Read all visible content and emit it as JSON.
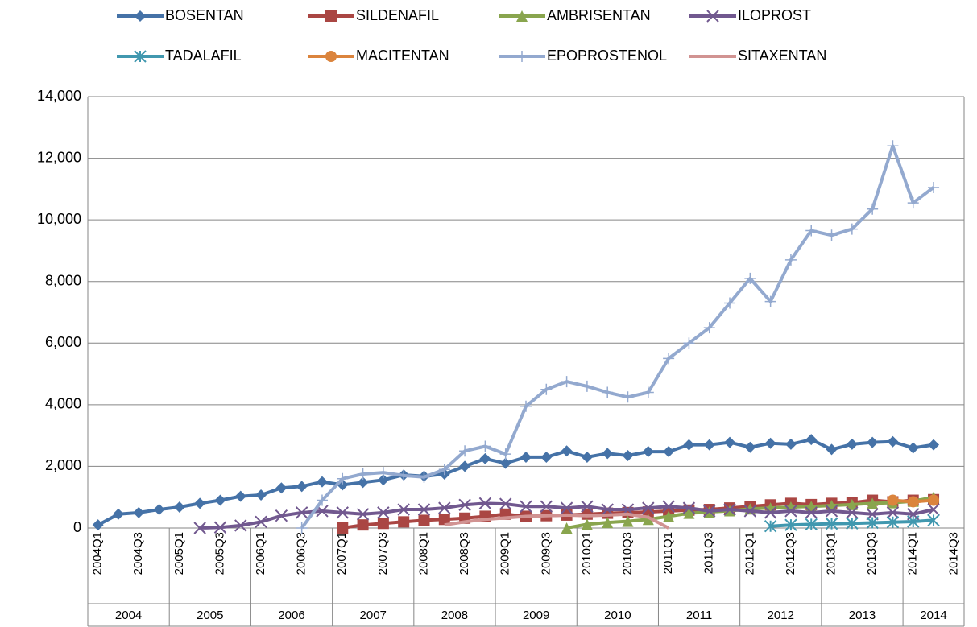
{
  "chart_data": {
    "type": "line",
    "categories": [
      "2004Q1",
      null,
      "2004Q3",
      null,
      "2005Q1",
      null,
      "2005Q3",
      null,
      "2006Q1",
      null,
      "2006Q3",
      null,
      "2007Q1",
      null,
      "2007Q3",
      null,
      "2008Q1",
      null,
      "2008Q3",
      null,
      "2009Q1",
      null,
      "2009Q3",
      null,
      "2010Q1",
      null,
      "2010Q3",
      null,
      "2011Q1",
      null,
      "2011Q3",
      null,
      "2012Q1",
      null,
      "2012Q3",
      null,
      "2013Q1",
      null,
      "2013Q3",
      null,
      "2014Q1",
      null,
      "2014Q3"
    ],
    "groups": [
      "2004",
      "2005",
      "2006",
      "2007",
      "2008",
      "2009",
      "2010",
      "2011",
      "2012",
      "2013",
      "2014"
    ],
    "ylim": [
      0,
      14000
    ],
    "yticks": [
      0,
      {
        "value": 2000,
        "label": "2,000"
      },
      {
        "value": 4000,
        "label": "4,000"
      },
      {
        "value": 6000,
        "label": "6,000"
      },
      {
        "value": 8000,
        "label": "8,000"
      },
      {
        "value": 10000,
        "label": "10,000"
      },
      {
        "value": 12000,
        "label": "12,000"
      },
      {
        "value": 14000,
        "label": "14,000"
      }
    ],
    "grid": true,
    "legend": "top",
    "series": [
      {
        "name": "BOSENTAN",
        "color": "#4572a7",
        "marker": "diamond",
        "values": [
          100,
          450,
          500,
          600,
          680,
          800,
          900,
          1030,
          1070,
          1300,
          1350,
          1500,
          1400,
          1480,
          1560,
          1720,
          1680,
          1750,
          2000,
          2250,
          2100,
          2300,
          2300,
          2500,
          2300,
          2420,
          2350,
          2480,
          2480,
          2700,
          2700,
          2780,
          2620,
          2750,
          2720,
          2870,
          2550,
          2720,
          2780,
          2800,
          2600,
          2700,
          null
        ]
      },
      {
        "name": "SILDENAFIL",
        "color": "#aa4643",
        "marker": "square",
        "values": [
          null,
          null,
          null,
          null,
          null,
          null,
          null,
          null,
          null,
          null,
          null,
          null,
          0,
          100,
          150,
          200,
          250,
          280,
          320,
          380,
          450,
          380,
          400,
          420,
          450,
          480,
          500,
          520,
          550,
          580,
          600,
          650,
          700,
          750,
          800,
          760,
          800,
          820,
          900,
          850,
          900,
          920,
          null
        ]
      },
      {
        "name": "AMBRISENTAN",
        "color": "#89a54e",
        "marker": "triangle",
        "values": [
          null,
          null,
          null,
          null,
          null,
          null,
          null,
          null,
          null,
          null,
          null,
          null,
          null,
          null,
          null,
          null,
          null,
          null,
          null,
          null,
          null,
          null,
          null,
          0,
          120,
          180,
          220,
          280,
          380,
          480,
          520,
          560,
          620,
          650,
          680,
          700,
          730,
          760,
          800,
          820,
          870,
          1000,
          null
        ]
      },
      {
        "name": "ILOPROST",
        "color": "#71588f",
        "marker": "x",
        "values": [
          null,
          null,
          null,
          null,
          null,
          0,
          20,
          80,
          200,
          400,
          500,
          550,
          500,
          450,
          500,
          600,
          600,
          650,
          750,
          800,
          780,
          700,
          700,
          650,
          700,
          600,
          600,
          650,
          700,
          650,
          550,
          600,
          550,
          500,
          550,
          500,
          550,
          500,
          450,
          500,
          450,
          600,
          null
        ]
      },
      {
        "name": "TADALAFIL",
        "color": "#4198af",
        "marker": "star",
        "values": [
          null,
          null,
          null,
          null,
          null,
          null,
          null,
          null,
          null,
          null,
          null,
          null,
          null,
          null,
          null,
          null,
          null,
          null,
          null,
          null,
          null,
          null,
          null,
          null,
          null,
          null,
          null,
          null,
          null,
          null,
          null,
          null,
          null,
          60,
          100,
          120,
          140,
          150,
          170,
          190,
          210,
          250,
          null
        ]
      },
      {
        "name": "MACITENTAN",
        "color": "#db843d",
        "marker": "circle",
        "values": [
          null,
          null,
          null,
          null,
          null,
          null,
          null,
          null,
          null,
          null,
          null,
          null,
          null,
          null,
          null,
          null,
          null,
          null,
          null,
          null,
          null,
          null,
          null,
          null,
          null,
          null,
          null,
          null,
          null,
          null,
          null,
          null,
          null,
          null,
          null,
          null,
          null,
          null,
          null,
          900,
          850,
          900,
          null
        ]
      },
      {
        "name": "EPOPROSTENOL",
        "color": "#93a9cf",
        "marker": "plus",
        "values": [
          null,
          null,
          null,
          null,
          null,
          null,
          null,
          null,
          null,
          null,
          0,
          900,
          1600,
          1750,
          1800,
          1700,
          1650,
          1900,
          2500,
          2650,
          2400,
          3950,
          4500,
          4750,
          4600,
          4400,
          4250,
          4400,
          5500,
          6000,
          6500,
          7300,
          8100,
          7350,
          8700,
          9650,
          9500,
          9700,
          10350,
          12400,
          10550,
          11050,
          null
        ]
      },
      {
        "name": "SITAXENTAN",
        "color": "#d19392",
        "marker": "none",
        "values": [
          null,
          null,
          null,
          null,
          null,
          null,
          null,
          null,
          null,
          null,
          null,
          null,
          null,
          null,
          null,
          null,
          null,
          100,
          200,
          280,
          330,
          380,
          400,
          420,
          400,
          420,
          450,
          350,
          0,
          null,
          null,
          null,
          null,
          null,
          null,
          null,
          null,
          null,
          null,
          null,
          null,
          null,
          null
        ]
      }
    ]
  }
}
